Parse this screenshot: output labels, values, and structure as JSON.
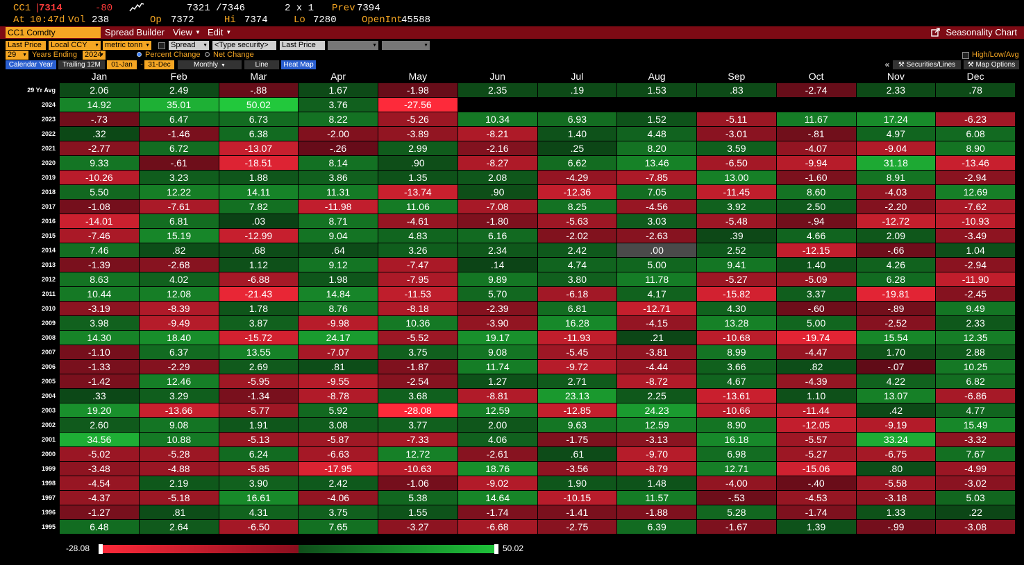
{
  "quote": {
    "ticker": "CC1",
    "last": "7314",
    "change": "-80",
    "at_label": "At",
    "time": "10:47d",
    "vol_label": "Vol",
    "vol": "238",
    "bidask": "7321 /7346",
    "size": "2 x 1",
    "op_label": "Op",
    "open": "7372",
    "hi_label": "Hi",
    "high": "7374",
    "lo_label": "Lo",
    "low": "7280",
    "prev_label": "Prev",
    "prev": "7394",
    "oi_label": "OpenInt",
    "open_interest": "45588",
    "sparkline_icon": "sparkline-icon"
  },
  "titlebar": {
    "security": "CC1 Comdty",
    "spread_builder": "Spread Builder",
    "view": "View",
    "edit": "Edit",
    "title": "Seasonality Chart",
    "export_icon": "export-icon"
  },
  "controls": {
    "price_field": "Last Price",
    "currency": "Local CCY",
    "unit": "metric tonn",
    "spread_label": "Spread",
    "type_security_placeholder": "<Type security>",
    "spread_field": "Last Price",
    "years": "29",
    "years_label": "Years Ending",
    "ending_year": "2024",
    "percent_change": "Percent Change",
    "net_change": "Net Change",
    "high_low_avg": "High/Low/Avg",
    "calendar_year": "Calendar Year",
    "trailing": "Trailing 12M",
    "start_date": "01-Jan",
    "end_date": "31-Dec",
    "period": "Monthly",
    "line": "Line",
    "heat_map": "Heat Map",
    "collapse_icon": "double-chevron-left-icon",
    "securities_lines": "Securities/Lines",
    "map_options": "Map Options"
  },
  "months": [
    "Jan",
    "Feb",
    "Mar",
    "Apr",
    "May",
    "Jun",
    "Jul",
    "Aug",
    "Sep",
    "Oct",
    "Nov",
    "Dec"
  ],
  "avg_label": "29 Yr Avg",
  "avg": [
    "2.06",
    "2.49",
    "-.88",
    "1.67",
    "-1.98",
    "2.35",
    ".19",
    "1.53",
    ".83",
    "-2.74",
    "2.33",
    ".78"
  ],
  "years": [
    {
      "year": "2024",
      "values": [
        "14.92",
        "35.01",
        "50.02",
        "3.76",
        "-27.56",
        "",
        "",
        "",
        "",
        "",
        "",
        ""
      ]
    },
    {
      "year": "2023",
      "values": [
        "-.73",
        "6.47",
        "6.73",
        "8.22",
        "-5.26",
        "10.34",
        "6.93",
        "1.52",
        "-5.11",
        "11.67",
        "17.24",
        "-6.23"
      ]
    },
    {
      "year": "2022",
      "values": [
        ".32",
        "-1.46",
        "6.38",
        "-2.00",
        "-3.89",
        "-8.21",
        "1.40",
        "4.48",
        "-3.01",
        "-.81",
        "4.97",
        "6.08"
      ]
    },
    {
      "year": "2021",
      "values": [
        "-2.77",
        "6.72",
        "-13.07",
        "-.26",
        "2.99",
        "-2.16",
        ".25",
        "8.20",
        "3.59",
        "-4.07",
        "-9.04",
        "8.90"
      ]
    },
    {
      "year": "2020",
      "values": [
        "9.33",
        "-.61",
        "-18.51",
        "8.14",
        ".90",
        "-8.27",
        "6.62",
        "13.46",
        "-6.50",
        "-9.94",
        "31.18",
        "-13.46"
      ]
    },
    {
      "year": "2019",
      "values": [
        "-10.26",
        "3.23",
        "1.88",
        "3.86",
        "1.35",
        "2.08",
        "-4.29",
        "-7.85",
        "13.00",
        "-1.60",
        "8.91",
        "-2.94"
      ]
    },
    {
      "year": "2018",
      "values": [
        "5.50",
        "12.22",
        "14.11",
        "11.31",
        "-13.74",
        ".90",
        "-12.36",
        "7.05",
        "-11.45",
        "8.60",
        "-4.03",
        "12.69"
      ]
    },
    {
      "year": "2017",
      "values": [
        "-1.08",
        "-7.61",
        "7.82",
        "-11.98",
        "11.06",
        "-7.08",
        "8.25",
        "-4.56",
        "3.92",
        "2.50",
        "-2.20",
        "-7.62"
      ]
    },
    {
      "year": "2016",
      "values": [
        "-14.01",
        "6.81",
        ".03",
        "8.71",
        "-4.61",
        "-1.80",
        "-5.63",
        "3.03",
        "-5.48",
        "-.94",
        "-12.72",
        "-10.93"
      ]
    },
    {
      "year": "2015",
      "values": [
        "-7.46",
        "15.19",
        "-12.99",
        "9.04",
        "4.83",
        "6.16",
        "-2.02",
        "-2.63",
        ".39",
        "4.66",
        "2.09",
        "-3.49"
      ]
    },
    {
      "year": "2014",
      "values": [
        "7.46",
        ".82",
        ".68",
        ".64",
        "3.26",
        "2.34",
        "2.42",
        ".00",
        "2.52",
        "-12.15",
        "-.66",
        "1.04"
      ]
    },
    {
      "year": "2013",
      "values": [
        "-1.39",
        "-2.68",
        "1.12",
        "9.12",
        "-7.47",
        ".14",
        "4.74",
        "5.00",
        "9.41",
        "1.40",
        "4.26",
        "-2.94"
      ]
    },
    {
      "year": "2012",
      "values": [
        "8.63",
        "4.02",
        "-6.88",
        "1.98",
        "-7.95",
        "9.89",
        "3.80",
        "11.78",
        "-5.27",
        "-5.09",
        "6.28",
        "-11.90"
      ]
    },
    {
      "year": "2011",
      "values": [
        "10.44",
        "12.08",
        "-21.43",
        "14.84",
        "-11.53",
        "5.70",
        "-6.18",
        "4.17",
        "-15.82",
        "3.37",
        "-19.81",
        "-2.45"
      ]
    },
    {
      "year": "2010",
      "values": [
        "-3.19",
        "-8.39",
        "1.78",
        "8.76",
        "-8.18",
        "-2.39",
        "6.81",
        "-12.71",
        "4.30",
        "-.60",
        "-.89",
        "9.49"
      ]
    },
    {
      "year": "2009",
      "values": [
        "3.98",
        "-9.49",
        "3.87",
        "-9.98",
        "10.36",
        "-3.90",
        "16.28",
        "-4.15",
        "13.28",
        "5.00",
        "-2.52",
        "2.33"
      ]
    },
    {
      "year": "2008",
      "values": [
        "14.30",
        "18.40",
        "-15.72",
        "24.17",
        "-5.52",
        "19.17",
        "-11.93",
        ".21",
        "-10.68",
        "-19.74",
        "15.54",
        "12.35"
      ]
    },
    {
      "year": "2007",
      "values": [
        "-1.10",
        "6.37",
        "13.55",
        "-7.07",
        "3.75",
        "9.08",
        "-5.45",
        "-3.81",
        "8.99",
        "-4.47",
        "1.70",
        "2.88"
      ]
    },
    {
      "year": "2006",
      "values": [
        "-1.33",
        "-2.29",
        "2.69",
        ".81",
        "-1.87",
        "11.74",
        "-9.72",
        "-4.44",
        "3.66",
        ".82",
        "-.07",
        "10.25"
      ]
    },
    {
      "year": "2005",
      "values": [
        "-1.42",
        "12.46",
        "-5.95",
        "-9.55",
        "-2.54",
        "1.27",
        "2.71",
        "-8.72",
        "4.67",
        "-4.39",
        "4.22",
        "6.82"
      ]
    },
    {
      "year": "2004",
      "values": [
        ".33",
        "3.29",
        "-1.34",
        "-8.78",
        "3.68",
        "-8.81",
        "23.13",
        "2.25",
        "-13.61",
        "1.10",
        "13.07",
        "-6.86"
      ]
    },
    {
      "year": "2003",
      "values": [
        "19.20",
        "-13.66",
        "-5.77",
        "5.92",
        "-28.08",
        "12.59",
        "-12.85",
        "24.23",
        "-10.66",
        "-11.44",
        ".42",
        "4.77"
      ]
    },
    {
      "year": "2002",
      "values": [
        "2.60",
        "9.08",
        "1.91",
        "3.08",
        "3.77",
        "2.00",
        "9.63",
        "12.59",
        "8.90",
        "-12.05",
        "-9.19",
        "15.49"
      ]
    },
    {
      "year": "2001",
      "values": [
        "34.56",
        "10.88",
        "-5.13",
        "-5.87",
        "-7.33",
        "4.06",
        "-1.75",
        "-3.13",
        "16.18",
        "-5.57",
        "33.24",
        "-3.32"
      ]
    },
    {
      "year": "2000",
      "values": [
        "-5.02",
        "-5.28",
        "6.24",
        "-6.63",
        "12.72",
        "-2.61",
        ".61",
        "-9.70",
        "6.98",
        "-5.27",
        "-6.75",
        "7.67"
      ]
    },
    {
      "year": "1999",
      "values": [
        "-3.48",
        "-4.88",
        "-5.85",
        "-17.95",
        "-10.63",
        "18.76",
        "-3.56",
        "-8.79",
        "12.71",
        "-15.06",
        ".80",
        "-4.99"
      ]
    },
    {
      "year": "1998",
      "values": [
        "-4.54",
        "2.19",
        "3.90",
        "2.42",
        "-1.06",
        "-9.02",
        "1.90",
        "1.48",
        "-4.00",
        "-.40",
        "-5.58",
        "-3.02"
      ]
    },
    {
      "year": "1997",
      "values": [
        "-4.37",
        "-5.18",
        "16.61",
        "-4.06",
        "5.38",
        "14.64",
        "-10.15",
        "11.57",
        "-.53",
        "-4.53",
        "-3.18",
        "5.03"
      ]
    },
    {
      "year": "1996",
      "values": [
        "-1.27",
        ".81",
        "4.31",
        "3.75",
        "1.55",
        "-1.74",
        "-1.41",
        "-1.88",
        "5.28",
        "-1.74",
        "1.33",
        ".22"
      ]
    },
    {
      "year": "1995",
      "values": [
        "6.48",
        "2.64",
        "-6.50",
        "7.65",
        "-3.27",
        "-6.68",
        "-2.75",
        "6.39",
        "-1.67",
        "1.39",
        "-.99",
        "-3.08"
      ]
    }
  ],
  "legend": {
    "min": "-28.08",
    "max": "50.02"
  },
  "colors": {
    "neg_light": "#ff2a3a",
    "neg_dark": "#5a0a16",
    "pos_dark": "#0b3f14",
    "pos_light": "#22c83c",
    "zero": "#4a4a4a",
    "accent": "#f5a623",
    "titlebar": "#7d0a14"
  }
}
